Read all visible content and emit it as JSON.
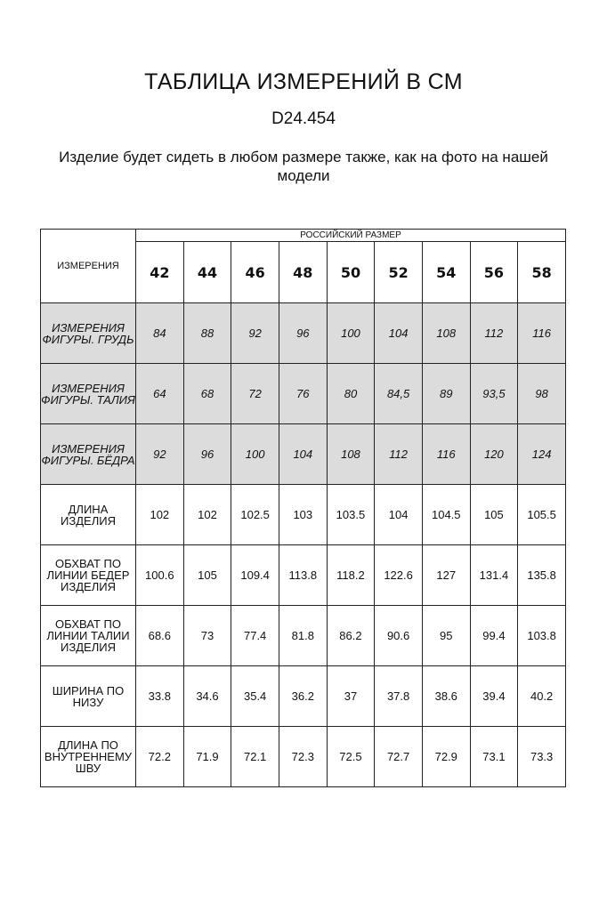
{
  "header": {
    "title": "ТАБЛИЦА ИЗМЕРЕНИЙ В СМ",
    "code": "D24.454",
    "subtitle": "Изделие будет сидеть в любом размере также, как на фото на нашей модели"
  },
  "table": {
    "corner_label": "ИЗМЕРЕНИЯ",
    "group_label": "РОССИЙСКИЙ РАЗМЕР",
    "sizes": [
      "42",
      "44",
      "46",
      "48",
      "50",
      "52",
      "54",
      "56",
      "58"
    ],
    "shaded_color": "#dcdcdc",
    "rows": [
      {
        "label": "ИЗМЕРЕНИЯ\nФИГУРЫ. ГРУДЬ",
        "shaded": true,
        "values": [
          "84",
          "88",
          "92",
          "96",
          "100",
          "104",
          "108",
          "112",
          "116"
        ]
      },
      {
        "label": "ИЗМЕРЕНИЯ\nФИГУРЫ. ТАЛИЯ",
        "shaded": true,
        "values": [
          "64",
          "68",
          "72",
          "76",
          "80",
          "84,5",
          "89",
          "93,5",
          "98"
        ]
      },
      {
        "label": "ИЗМЕРЕНИЯ\nФИГУРЫ. БЁДРА",
        "shaded": true,
        "values": [
          "92",
          "96",
          "100",
          "104",
          "108",
          "112",
          "116",
          "120",
          "124"
        ]
      },
      {
        "label": "ДЛИНА ИЗДЕЛИЯ",
        "shaded": false,
        "values": [
          "102",
          "102",
          "102.5",
          "103",
          "103.5",
          "104",
          "104.5",
          "105",
          "105.5"
        ]
      },
      {
        "label": "ОБХВАТ ПО\nЛИНИИ БЕДЕР\nИЗДЕЛИЯ",
        "shaded": false,
        "values": [
          "100.6",
          "105",
          "109.4",
          "113.8",
          "118.2",
          "122.6",
          "127",
          "131.4",
          "135.8"
        ]
      },
      {
        "label": "ОБХВАТ ПО\nЛИНИИ ТАЛИИ\nИЗДЕЛИЯ",
        "shaded": false,
        "values": [
          "68.6",
          "73",
          "77.4",
          "81.8",
          "86.2",
          "90.6",
          "95",
          "99.4",
          "103.8"
        ]
      },
      {
        "label": "ШИРИНА ПО\nНИЗУ",
        "shaded": false,
        "values": [
          "33.8",
          "34.6",
          "35.4",
          "36.2",
          "37",
          "37.8",
          "38.6",
          "39.4",
          "40.2"
        ]
      },
      {
        "label": "ДЛИНА ПО\nВНУТРЕННЕМУ\nШВУ",
        "shaded": false,
        "values": [
          "72.2",
          "71.9",
          "72.1",
          "72.3",
          "72.5",
          "72.7",
          "72.9",
          "73.1",
          "73.3"
        ]
      }
    ]
  }
}
